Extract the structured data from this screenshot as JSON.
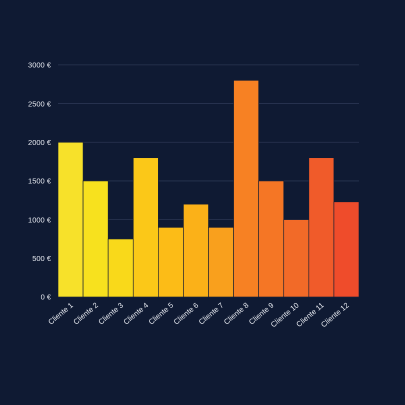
{
  "chart_data": {
    "type": "bar",
    "title": "",
    "xlabel": "",
    "ylabel": "",
    "categories": [
      "Cliente 1",
      "Cliente 2",
      "Cliente 3",
      "Cliente 4",
      "Cliente 5",
      "Cliente 6",
      "Cliente 7",
      "Cliente 8",
      "Cliente 9",
      "Cliente 10",
      "Cliente 11",
      "Cliente 12"
    ],
    "values": [
      2000,
      1500,
      750,
      1800,
      900,
      1200,
      900,
      2800,
      1500,
      1000,
      1800,
      1230
    ],
    "bar_colors": [
      "#f7e12a",
      "#f7e11e",
      "#f9d91a",
      "#fbc818",
      "#fcbc17",
      "#fbb118",
      "#f9a01d",
      "#f78123",
      "#f57625",
      "#f26a28",
      "#f05b2a",
      "#ef4c2b"
    ],
    "y_ticks": [
      0,
      500,
      1000,
      1500,
      2000,
      2500,
      3000
    ],
    "y_tick_labels": [
      "0 €",
      "500 €",
      "1000 €",
      "1500 €",
      "2000 €",
      "2500 €",
      "3000 €"
    ],
    "ylim": [
      0,
      3050
    ],
    "grid": true,
    "legend": "none",
    "background": "#0f1a33",
    "grid_color": "#2a3552",
    "text_color": "#e6e9f0"
  }
}
